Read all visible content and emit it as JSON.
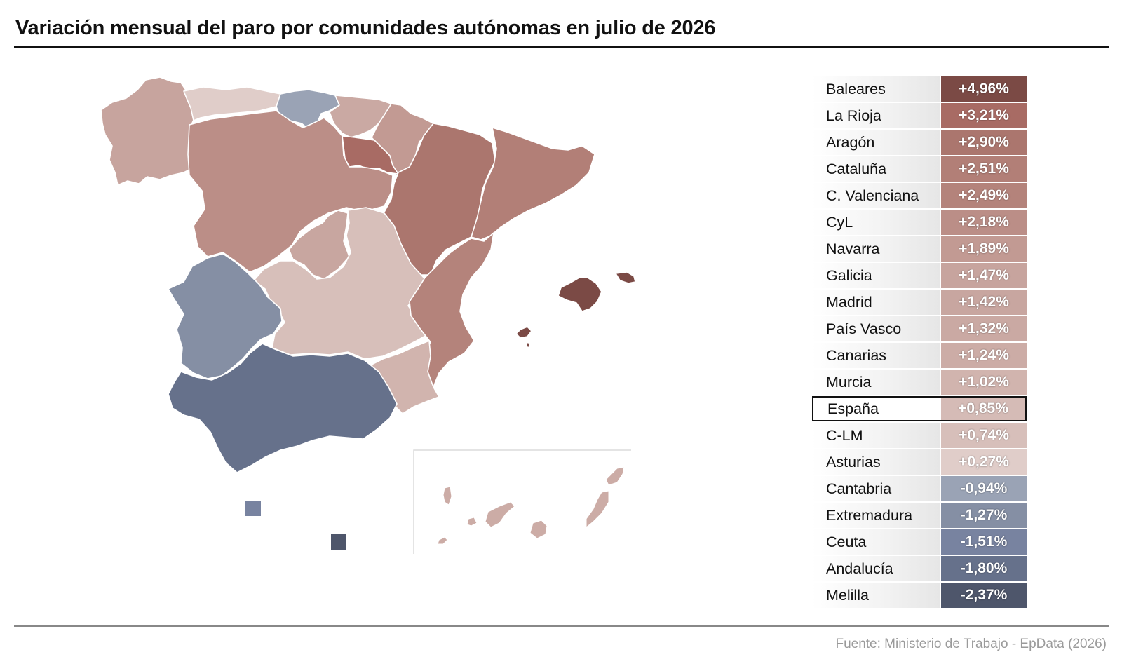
{
  "title": "Variación mensual del paro por comunidades autónomas en julio de 2026",
  "source": "Fuente: Ministerio de Trabajo - EpData (2026)",
  "table": [
    {
      "name": "Baleares",
      "value": "+4,96%",
      "color": "#7b4a45"
    },
    {
      "name": "La Rioja",
      "value": "+3,21%",
      "color": "#a86b64"
    },
    {
      "name": "Aragón",
      "value": "+2,90%",
      "color": "#ab766e"
    },
    {
      "name": "Cataluña",
      "value": "+2,51%",
      "color": "#b27f77"
    },
    {
      "name": "C. Valenciana",
      "value": "+2,49%",
      "color": "#b4837b"
    },
    {
      "name": "CyL",
      "value": "+2,18%",
      "color": "#bb8e87"
    },
    {
      "name": "Navarra",
      "value": "+1,89%",
      "color": "#c29a93"
    },
    {
      "name": "Galicia",
      "value": "+1,47%",
      "color": "#c7a49e"
    },
    {
      "name": "Madrid",
      "value": "+1,42%",
      "color": "#c8a6a0"
    },
    {
      "name": "País Vasco",
      "value": "+1,32%",
      "color": "#caa9a3"
    },
    {
      "name": "Canarias",
      "value": "+1,24%",
      "color": "#ccaca6"
    },
    {
      "name": "Murcia",
      "value": "+1,02%",
      "color": "#d1b4ae"
    },
    {
      "name": "España",
      "value": "+0,85%",
      "color": "#d5bbb6",
      "highlight": true
    },
    {
      "name": "C-LM",
      "value": "+0,74%",
      "color": "#d7bfba"
    },
    {
      "name": "Asturias",
      "value": "+0,27%",
      "color": "#e0cdc9"
    },
    {
      "name": "Cantabria",
      "value": "-0,94%",
      "color": "#9aa3b5"
    },
    {
      "name": "Extremadura",
      "value": "-1,27%",
      "color": "#858fa4"
    },
    {
      "name": "Ceuta",
      "value": "-1,51%",
      "color": "#7883a0"
    },
    {
      "name": "Andalucía",
      "value": "-1,80%",
      "color": "#66718b"
    },
    {
      "name": "Melilla",
      "value": "-2,37%",
      "color": "#4e566b"
    }
  ]
}
